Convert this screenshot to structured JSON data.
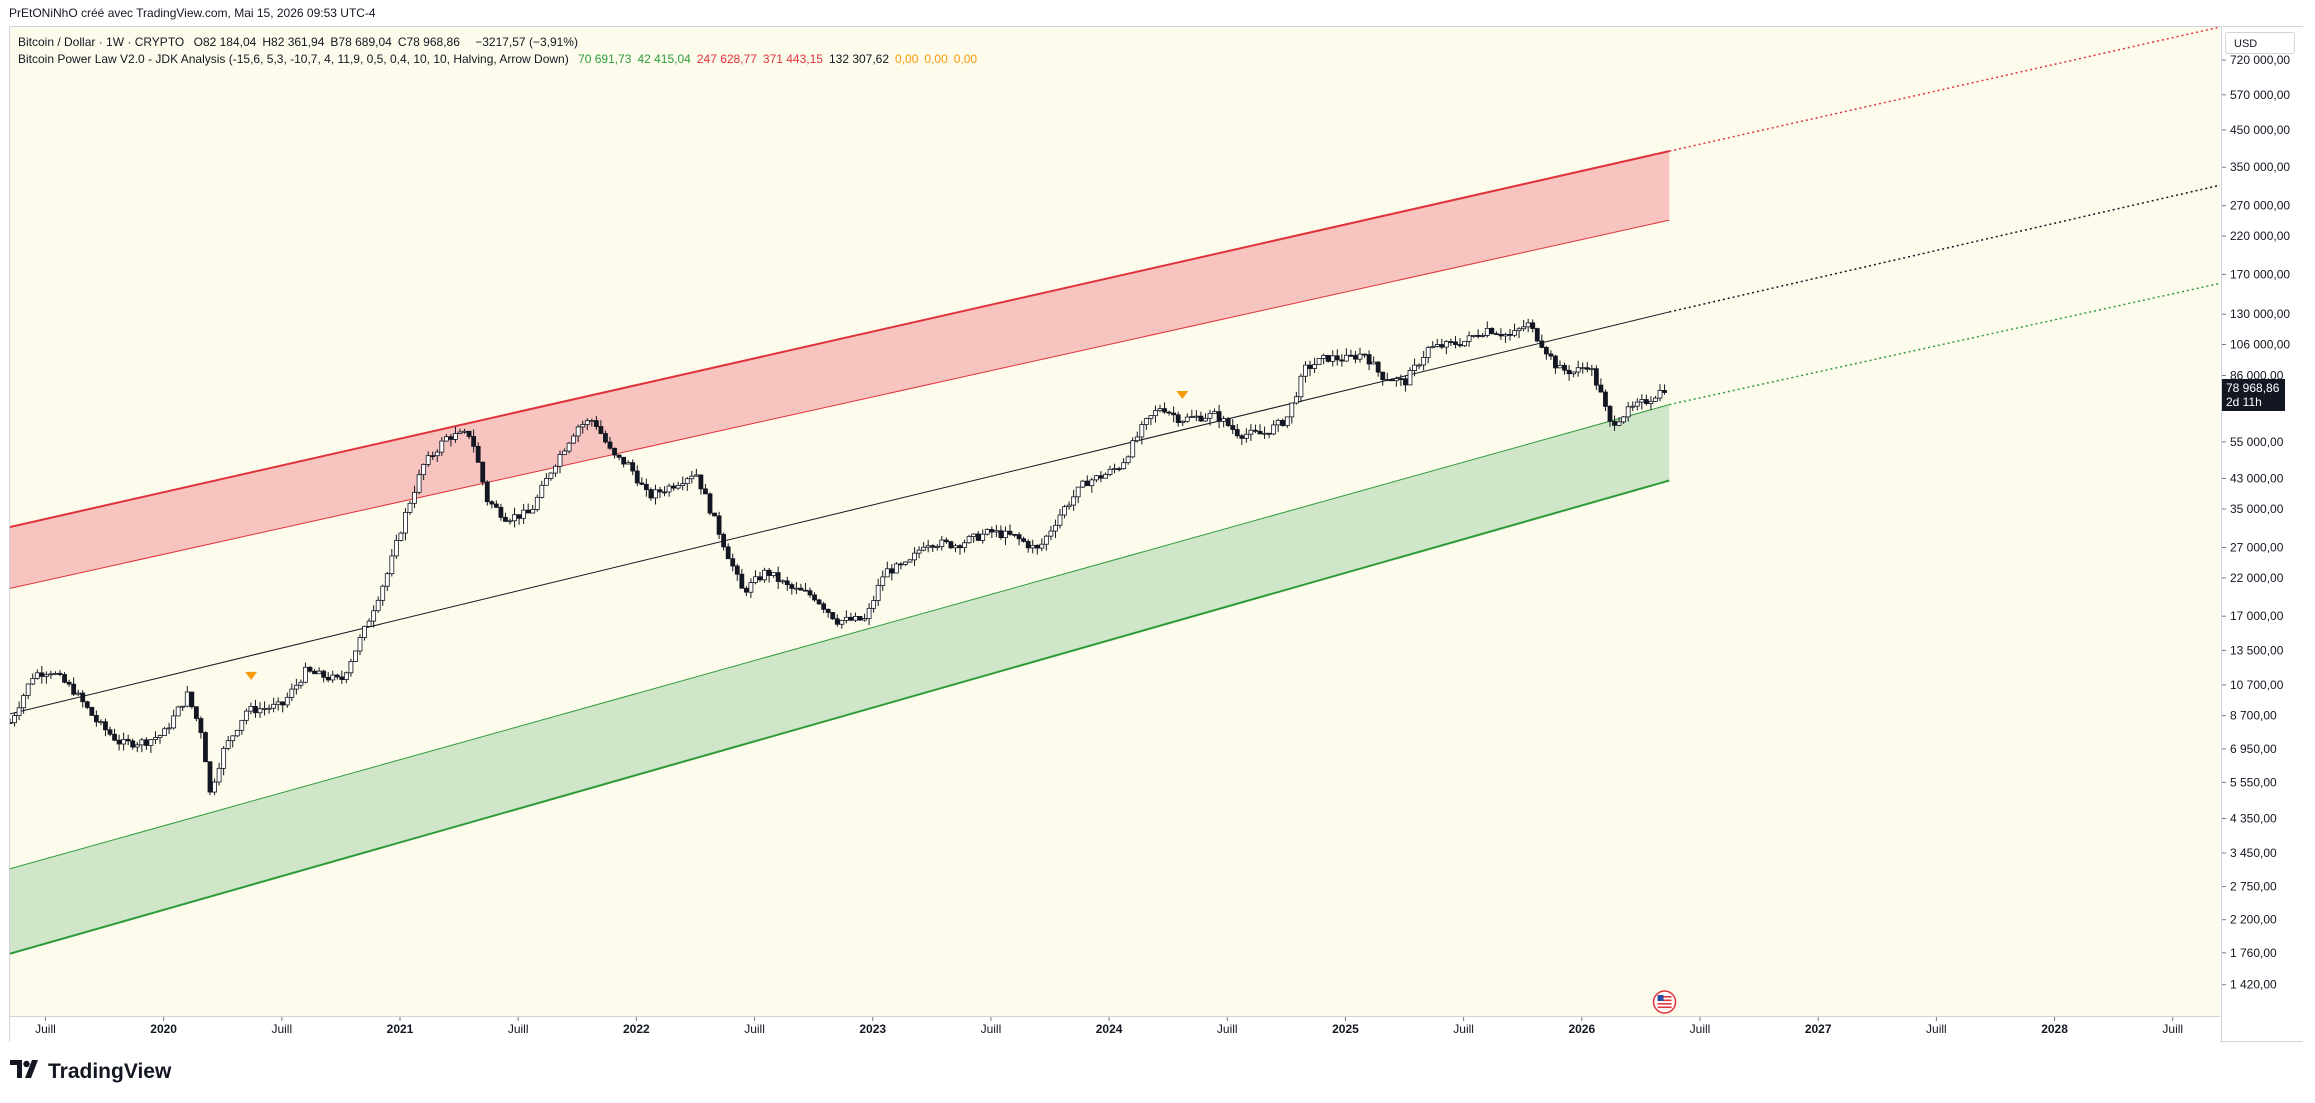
{
  "caption": "PrEtONiNhO créé avec TradingView.com, Mai 15, 2026 09:53 UTC-4",
  "legend": {
    "symbol": "Bitcoin / Dollar · 1W · CRYPTO",
    "ohlc": [
      {
        "label": "O",
        "value": "82 184,04"
      },
      {
        "label": "H",
        "value": "82 361,94"
      },
      {
        "label": "B",
        "value": "78 689,04"
      },
      {
        "label": "C",
        "value": "78 968,86"
      }
    ],
    "change": "−3217,57 (−3,91%)",
    "indicator": "Bitcoin Power Law V2.0 - JDK Analysis (-15,6, 5,3, -10,7, 4, 11,9, 0,5, 0,4, 10, 10, Halving, Arrow Down)",
    "indicator_values": [
      {
        "value": "70 691,73",
        "color": "green"
      },
      {
        "value": "42 415,04",
        "color": "green"
      },
      {
        "value": "247 628,77",
        "color": "red"
      },
      {
        "value": "371 443,15",
        "color": "red"
      },
      {
        "value": "132 307,62",
        "color": "dark"
      },
      {
        "value": "0,00",
        "color": "orange"
      },
      {
        "value": "0,00",
        "color": "orange"
      },
      {
        "value": "0,00",
        "color": "orange"
      }
    ]
  },
  "currency": "USD",
  "last_price": {
    "value": "78 968,86",
    "countdown": "2d 11h",
    "price": 78968.86
  },
  "brand": "TradingView",
  "icons": {
    "brand": "tradingview-logo-icon",
    "event": "us-flag-event-icon",
    "halving": "halving-arrow-icon"
  },
  "colors": {
    "background": "#fdfbec",
    "upper_band": "#e0323a",
    "upper_fill": "#f8c4c0",
    "lower_band": "#2e9b3a",
    "lower_fill": "#cfe7c8",
    "fair_line": "#131722",
    "candle_up": "#ffffff",
    "candle_down": "#131722",
    "halving": "#f59a0a"
  },
  "chart_data": {
    "type": "candlestick",
    "title": "Bitcoin / Dollar · 1W · CRYPTO",
    "scale": "log",
    "ylim": [
      1150,
      900000
    ],
    "xlim": [
      2019.35,
      2028.7
    ],
    "grid": false,
    "y_ticks": [
      {
        "value": 720000,
        "label": "720 000,00"
      },
      {
        "value": 570000,
        "label": "570 000,00"
      },
      {
        "value": 450000,
        "label": "450 000,00"
      },
      {
        "value": 350000,
        "label": "350 000,00"
      },
      {
        "value": 270000,
        "label": "270 000,00"
      },
      {
        "value": 220000,
        "label": "220 000,00"
      },
      {
        "value": 170000,
        "label": "170 000,00"
      },
      {
        "value": 130000,
        "label": "130 000,00"
      },
      {
        "value": 106000,
        "label": "106 000,00"
      },
      {
        "value": 86000,
        "label": "86 000,00"
      },
      {
        "value": 55000,
        "label": "55 000,00"
      },
      {
        "value": 43000,
        "label": "43 000,00"
      },
      {
        "value": 35000,
        "label": "35 000,00"
      },
      {
        "value": 27000,
        "label": "27 000,00"
      },
      {
        "value": 22000,
        "label": "22 000,00"
      },
      {
        "value": 17000,
        "label": "17 000,00"
      },
      {
        "value": 13500,
        "label": "13 500,00"
      },
      {
        "value": 10700,
        "label": "10 700,00"
      },
      {
        "value": 8700,
        "label": "8 700,00"
      },
      {
        "value": 6950,
        "label": "6 950,00"
      },
      {
        "value": 5550,
        "label": "5 550,00"
      },
      {
        "value": 4350,
        "label": "4 350,00"
      },
      {
        "value": 3450,
        "label": "3 450,00"
      },
      {
        "value": 2750,
        "label": "2 750,00"
      },
      {
        "value": 2200,
        "label": "2 200,00"
      },
      {
        "value": 1760,
        "label": "1 760,00"
      },
      {
        "value": 1420,
        "label": "1 420,00"
      }
    ],
    "x_ticks": [
      {
        "value": 2019.5,
        "label": "Juill",
        "bold": false
      },
      {
        "value": 2020.0,
        "label": "2020",
        "bold": true
      },
      {
        "value": 2020.5,
        "label": "Juill",
        "bold": false
      },
      {
        "value": 2021.0,
        "label": "2021",
        "bold": true
      },
      {
        "value": 2021.5,
        "label": "Juill",
        "bold": false
      },
      {
        "value": 2022.0,
        "label": "2022",
        "bold": true
      },
      {
        "value": 2022.5,
        "label": "Juill",
        "bold": false
      },
      {
        "value": 2023.0,
        "label": "2023",
        "bold": true
      },
      {
        "value": 2023.5,
        "label": "Juill",
        "bold": false
      },
      {
        "value": 2024.0,
        "label": "2024",
        "bold": true
      },
      {
        "value": 2024.5,
        "label": "Juill",
        "bold": false
      },
      {
        "value": 2025.0,
        "label": "2025",
        "bold": true
      },
      {
        "value": 2025.5,
        "label": "Juill",
        "bold": false
      },
      {
        "value": 2026.0,
        "label": "2026",
        "bold": true
      },
      {
        "value": 2026.5,
        "label": "Juill",
        "bold": false
      },
      {
        "value": 2027.0,
        "label": "2027",
        "bold": true
      },
      {
        "value": 2027.5,
        "label": "Juill",
        "bold": false
      },
      {
        "value": 2028.0,
        "label": "2028",
        "bold": true
      },
      {
        "value": 2028.5,
        "label": "Juill",
        "bold": false
      }
    ],
    "bands": {
      "solid_end": 2026.37,
      "upper_top": [
        [
          2019.35,
          31000
        ],
        [
          2026.37,
          390000
        ],
        [
          2028.7,
          900000
        ]
      ],
      "upper_bot": [
        [
          2019.35,
          20500
        ],
        [
          2026.37,
          245000
        ],
        [
          2028.7,
          560000
        ]
      ],
      "fair": [
        [
          2019.35,
          8800
        ],
        [
          2026.37,
          132000
        ],
        [
          2028.7,
          310000
        ]
      ],
      "lower_top": [
        [
          2019.35,
          3100
        ],
        [
          2026.37,
          70700
        ],
        [
          2028.7,
          160000
        ]
      ],
      "lower_bot": [
        [
          2019.35,
          1750
        ],
        [
          2026.37,
          42400
        ]
      ]
    },
    "halving_markers": [
      {
        "x": 2020.37,
        "y": 10700
      },
      {
        "x": 2024.31,
        "y": 71000
      }
    ],
    "price_path": [
      [
        2019.35,
        8300
      ],
      [
        2019.45,
        11500
      ],
      [
        2019.52,
        11800
      ],
      [
        2019.62,
        10300
      ],
      [
        2019.72,
        8300
      ],
      [
        2019.82,
        7200
      ],
      [
        2019.92,
        7300
      ],
      [
        2020.0,
        7700
      ],
      [
        2020.1,
        10000
      ],
      [
        2020.17,
        7500
      ],
      [
        2020.19,
        5000
      ],
      [
        2020.25,
        6800
      ],
      [
        2020.35,
        9000
      ],
      [
        2020.5,
        9300
      ],
      [
        2020.6,
        11700
      ],
      [
        2020.75,
        11000
      ],
      [
        2020.85,
        15500
      ],
      [
        2020.95,
        23000
      ],
      [
        2021.03,
        35000
      ],
      [
        2021.1,
        47000
      ],
      [
        2021.2,
        57000
      ],
      [
        2021.3,
        58000
      ],
      [
        2021.37,
        37000
      ],
      [
        2021.45,
        33000
      ],
      [
        2021.55,
        34000
      ],
      [
        2021.65,
        47000
      ],
      [
        2021.75,
        61000
      ],
      [
        2021.82,
        64000
      ],
      [
        2021.9,
        50000
      ],
      [
        2021.97,
        47000
      ],
      [
        2022.05,
        38000
      ],
      [
        2022.15,
        41000
      ],
      [
        2022.25,
        45000
      ],
      [
        2022.35,
        30000
      ],
      [
        2022.45,
        20000
      ],
      [
        2022.55,
        23000
      ],
      [
        2022.65,
        20500
      ],
      [
        2022.75,
        19500
      ],
      [
        2022.85,
        16500
      ],
      [
        2022.97,
        16600
      ],
      [
        2023.05,
        23000
      ],
      [
        2023.15,
        24000
      ],
      [
        2023.22,
        28000
      ],
      [
        2023.35,
        27500
      ],
      [
        2023.5,
        30000
      ],
      [
        2023.6,
        29000
      ],
      [
        2023.7,
        26500
      ],
      [
        2023.8,
        34500
      ],
      [
        2023.9,
        42000
      ],
      [
        2023.98,
        44000
      ],
      [
        2024.05,
        47000
      ],
      [
        2024.15,
        62000
      ],
      [
        2024.22,
        70000
      ],
      [
        2024.3,
        64000
      ],
      [
        2024.45,
        66000
      ],
      [
        2024.55,
        58000
      ],
      [
        2024.65,
        58000
      ],
      [
        2024.75,
        64000
      ],
      [
        2024.83,
        90000
      ],
      [
        2024.92,
        97000
      ],
      [
        2025.0,
        96000
      ],
      [
        2025.08,
        100000
      ],
      [
        2025.15,
        86000
      ],
      [
        2025.25,
        82000
      ],
      [
        2025.35,
        103000
      ],
      [
        2025.5,
        108000
      ],
      [
        2025.6,
        118000
      ],
      [
        2025.7,
        112000
      ],
      [
        2025.77,
        122000
      ],
      [
        2025.83,
        107000
      ],
      [
        2025.9,
        90000
      ],
      [
        2025.97,
        88000
      ],
      [
        2026.03,
        93000
      ],
      [
        2026.08,
        76000
      ],
      [
        2026.12,
        62000
      ],
      [
        2026.2,
        68000
      ],
      [
        2026.28,
        73000
      ],
      [
        2026.35,
        78968.86
      ]
    ]
  }
}
